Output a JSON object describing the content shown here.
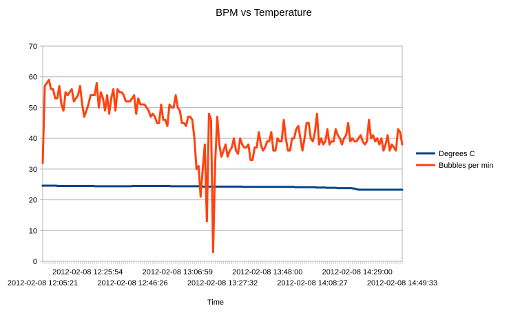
{
  "chart_data": {
    "type": "line",
    "title": "BPM vs Temperature",
    "xlabel": "Time",
    "ylabel": "",
    "ylim": [
      0,
      70
    ],
    "yticks": [
      0,
      10,
      20,
      30,
      40,
      50,
      60,
      70
    ],
    "grid": true,
    "legend_position": "right",
    "x_tick_labels_upper": [
      "2012-02-08 12:25:54",
      "2012-02-08 13:06:59",
      "2012-02-08 13:48:00",
      "2012-02-08 14:29:00"
    ],
    "x_tick_labels_lower": [
      "2012-02-08 12:05:21",
      "2012-02-08 12:46:26",
      "2012-02-08 13:27:32",
      "2012-02-08 14:08:27",
      "2012-02-08 14:49:33"
    ],
    "series": [
      {
        "name": "Degrees C",
        "color": "#004586",
        "values": [
          24.6,
          24.6,
          24.6,
          24.6,
          24.6,
          24.6,
          24.6,
          24.6,
          24.6,
          24.6,
          24.6,
          24.6,
          24.5,
          24.5,
          24.5,
          24.5,
          24.5,
          24.5,
          24.5,
          24.5,
          24.5,
          24.5,
          24.5,
          24.5,
          24.5,
          24.5,
          24.5,
          24.5,
          24.5,
          24.5,
          24.5,
          24.5,
          24.5,
          24.5,
          24.5,
          24.5,
          24.5,
          24.5,
          24.5,
          24.5,
          24.5,
          24.5,
          24.4,
          24.4,
          24.4,
          24.4,
          24.4,
          24.4,
          24.4,
          24.4,
          24.4,
          24.4,
          24.4,
          24.4,
          24.4,
          24.4,
          24.4,
          24.4,
          24.4,
          24.4,
          24.4,
          24.4,
          24.4,
          24.4,
          24.4,
          24.4,
          24.4,
          24.4,
          24.4,
          24.4,
          24.4,
          24.4,
          24.5,
          24.5,
          24.5,
          24.5,
          24.5,
          24.5,
          24.5,
          24.5,
          24.5,
          24.5,
          24.5,
          24.5,
          24.5,
          24.5,
          24.5,
          24.5,
          24.5,
          24.5,
          24.5,
          24.5,
          24.5,
          24.5,
          24.5,
          24.5,
          24.5,
          24.5,
          24.5,
          24.5,
          24.5,
          24.5,
          24.5,
          24.4,
          24.4,
          24.4,
          24.4,
          24.4,
          24.4,
          24.4,
          24.4,
          24.4,
          24.4,
          24.4,
          24.4,
          24.4,
          24.4,
          24.4,
          24.4,
          24.4,
          24.4,
          24.4,
          24.4,
          24.4,
          24.4,
          24.4,
          24.4,
          24.4,
          24.4,
          24.3,
          24.3,
          24.3,
          24.3,
          24.3,
          24.3,
          24.3,
          24.3,
          24.3,
          24.3,
          24.3,
          24.3,
          24.3,
          24.3,
          24.3,
          24.3,
          24.3,
          24.3,
          24.3,
          24.3,
          24.3,
          24.3,
          24.3,
          24.3,
          24.3,
          24.3,
          24.3,
          24.3,
          24.3,
          24.3,
          24.3,
          24.3,
          24.2,
          24.2,
          24.2,
          24.2,
          24.2,
          24.2,
          24.2,
          24.2,
          24.2,
          24.2,
          24.2,
          24.2,
          24.2,
          24.2,
          24.2,
          24.2,
          24.2,
          24.2,
          24.2,
          24.2,
          24.2,
          24.2,
          24.2,
          24.2,
          24.2,
          24.2,
          24.2,
          24.2,
          24.2,
          24.2,
          24.2,
          24.2,
          24.2,
          24.2,
          24.2,
          24.2,
          24.2,
          24.2,
          24.2,
          24.2,
          24.2,
          24.2,
          24.1,
          24.1,
          24.1,
          24.1,
          24.1,
          24.1,
          24.1,
          24.1,
          24.1,
          24.1,
          24.1,
          24.1,
          24.1,
          24.1,
          24.1,
          24.1,
          24.1,
          24.0,
          24.0,
          24.0,
          24.0,
          24.0,
          24.0,
          24.0,
          24.0,
          23.9,
          23.9,
          23.9,
          23.9,
          23.9,
          23.9,
          23.9,
          23.9,
          23.9,
          23.8,
          23.8,
          23.8,
          23.8,
          23.8,
          23.8,
          23.8,
          23.8,
          23.8,
          23.8,
          23.8,
          23.8,
          23.7,
          23.7,
          23.6,
          23.5,
          23.4,
          23.3,
          23.3,
          23.3,
          23.3,
          23.3,
          23.3,
          23.3,
          23.3,
          23.3,
          23.3,
          23.3,
          23.3,
          23.3,
          23.3,
          23.3,
          23.3,
          23.3,
          23.3,
          23.3,
          23.3,
          23.3,
          23.3,
          23.3,
          23.3,
          23.3,
          23.3,
          23.3,
          23.3,
          23.3,
          23.3,
          23.3,
          23.3,
          23.3,
          23.3,
          23.3,
          23.3
        ]
      },
      {
        "name": "Bubbles per min",
        "color": "#ff420e",
        "values": [
          32,
          57,
          58,
          59,
          56,
          56,
          53,
          53,
          57,
          51,
          49,
          55,
          54,
          55,
          56,
          52,
          53,
          54,
          57,
          51,
          47,
          49,
          51,
          54,
          54,
          54,
          58,
          50,
          55,
          53,
          49,
          54,
          48,
          53,
          56,
          49,
          56,
          55,
          55,
          54,
          52,
          52,
          52,
          53,
          54,
          48,
          53,
          51,
          51,
          51,
          50,
          49,
          47,
          48,
          47,
          45,
          45,
          51,
          46,
          46,
          44,
          51,
          50,
          50,
          54,
          50,
          49,
          45,
          45,
          44,
          47,
          47,
          46,
          40,
          30,
          31,
          21,
          30,
          38,
          13,
          48,
          46,
          3,
          32,
          47,
          38,
          34,
          36,
          38,
          34,
          36,
          37,
          40,
          36,
          35,
          40,
          38,
          37,
          37,
          38,
          33,
          33,
          37,
          37,
          42,
          38,
          36,
          37,
          39,
          39,
          42,
          36,
          36,
          40,
          39,
          39,
          46,
          40,
          36,
          36,
          40,
          40,
          43,
          44,
          40,
          36,
          40,
          45,
          45,
          40,
          39,
          42,
          48,
          38,
          40,
          38,
          39,
          43,
          38,
          39,
          39,
          43,
          41,
          40,
          38,
          40,
          41,
          45,
          39,
          40,
          39,
          39,
          40,
          41,
          39,
          38,
          39,
          46,
          40,
          41,
          39,
          40,
          38,
          40,
          36,
          38,
          41,
          36,
          38,
          37,
          36,
          43,
          42,
          38
        ]
      }
    ]
  }
}
